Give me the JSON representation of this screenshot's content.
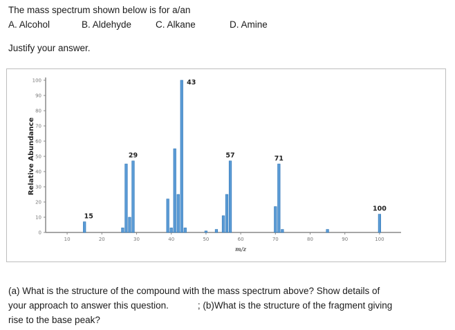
{
  "question": {
    "line1": "The mass spectrum shown below is for a/an",
    "options": [
      "A.  Alcohol",
      "B. Aldehyde",
      "C. Alkane",
      "D. Amine"
    ],
    "justify": "Justify your answer.",
    "part_a_line1": "(a) What is the structure of the compound with the mass spectrum above? Show details of",
    "part_a_line2a": "your approach to answer this question.",
    "part_a_line2b": "; (b)What is the structure of the fragment giving",
    "part_a_line3": "rise to the base peak?"
  },
  "chart_data": {
    "type": "bar",
    "ylabel": "Relative Abundance",
    "xlabel": "m/z",
    "xlim": [
      5,
      105
    ],
    "ylim": [
      0,
      100
    ],
    "xticks": [
      10,
      20,
      30,
      40,
      50,
      60,
      70,
      80,
      90,
      100
    ],
    "yticks": [
      0,
      10,
      20,
      30,
      40,
      50,
      60,
      70,
      80,
      90,
      100
    ],
    "peaks": [
      {
        "mz": 15,
        "intensity": 7
      },
      {
        "mz": 26,
        "intensity": 3
      },
      {
        "mz": 27,
        "intensity": 45
      },
      {
        "mz": 28,
        "intensity": 10
      },
      {
        "mz": 29,
        "intensity": 47
      },
      {
        "mz": 39,
        "intensity": 22
      },
      {
        "mz": 40,
        "intensity": 3
      },
      {
        "mz": 41,
        "intensity": 55
      },
      {
        "mz": 42,
        "intensity": 25
      },
      {
        "mz": 43,
        "intensity": 100
      },
      {
        "mz": 44,
        "intensity": 3
      },
      {
        "mz": 50,
        "intensity": 1
      },
      {
        "mz": 53,
        "intensity": 2
      },
      {
        "mz": 55,
        "intensity": 11
      },
      {
        "mz": 56,
        "intensity": 25
      },
      {
        "mz": 57,
        "intensity": 47
      },
      {
        "mz": 70,
        "intensity": 17
      },
      {
        "mz": 71,
        "intensity": 45
      },
      {
        "mz": 72,
        "intensity": 2
      },
      {
        "mz": 85,
        "intensity": 2
      },
      {
        "mz": 100,
        "intensity": 12
      }
    ],
    "annotations": [
      {
        "mz": 15,
        "text": "15"
      },
      {
        "mz": 29,
        "text": "29"
      },
      {
        "mz": 43,
        "text": "43"
      },
      {
        "mz": 57,
        "text": "57"
      },
      {
        "mz": 71,
        "text": "71"
      },
      {
        "mz": 100,
        "text": "100"
      }
    ],
    "colors": {
      "bar": "#5b9bd5",
      "bar_dark": "#2e75b6",
      "axis": "#888888"
    }
  }
}
